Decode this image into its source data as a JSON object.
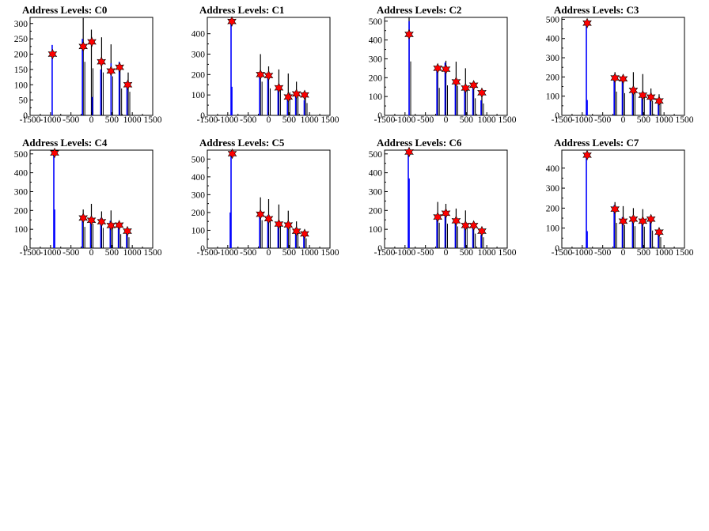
{
  "chart_data": [
    {
      "type": "histogram",
      "title": "Address Levels: C0",
      "xlim": [
        -1500,
        1500
      ],
      "ylim": [
        0,
        320
      ],
      "xticks": [
        -1500,
        -1000,
        -500,
        0,
        500,
        1000,
        1500
      ],
      "yticks": [
        0,
        50,
        100,
        150,
        200,
        250,
        300
      ],
      "black_peaks": [
        {
          "x": -200,
          "y": 318
        },
        {
          "x": 0,
          "y": 280
        },
        {
          "x": 250,
          "y": 255
        },
        {
          "x": 480,
          "y": 232
        },
        {
          "x": 700,
          "y": 160
        },
        {
          "x": 900,
          "y": 140
        }
      ],
      "blue_peaks": [
        {
          "x": -940,
          "y": 230
        },
        {
          "x": -200,
          "y": 250
        },
        {
          "x": 40,
          "y": 60
        },
        {
          "x": 250,
          "y": 150
        },
        {
          "x": 500,
          "y": 170
        },
        {
          "x": 700,
          "y": 175
        },
        {
          "x": 890,
          "y": 110
        }
      ],
      "star_markers": [
        {
          "x": -950,
          "y": 200
        },
        {
          "x": -200,
          "y": 225
        },
        {
          "x": 10,
          "y": 240
        },
        {
          "x": 245,
          "y": 175
        },
        {
          "x": 480,
          "y": 145
        },
        {
          "x": 690,
          "y": 157
        },
        {
          "x": 890,
          "y": 100
        }
      ]
    },
    {
      "type": "histogram",
      "title": "Address Levels: C1",
      "xlim": [
        -1500,
        1500
      ],
      "ylim": [
        0,
        480
      ],
      "xticks": [
        -1500,
        -1000,
        -500,
        0,
        500,
        1000,
        1500
      ],
      "yticks": [
        0,
        100,
        200,
        300,
        400
      ],
      "black_peaks": [
        {
          "x": -200,
          "y": 300
        },
        {
          "x": 0,
          "y": 240
        },
        {
          "x": 250,
          "y": 225
        },
        {
          "x": 480,
          "y": 205
        },
        {
          "x": 680,
          "y": 165
        },
        {
          "x": 900,
          "y": 110
        }
      ],
      "blue_peaks": [
        {
          "x": -900,
          "y": 470
        },
        {
          "x": -880,
          "y": 140
        },
        {
          "x": -200,
          "y": 210
        },
        {
          "x": 0,
          "y": 200
        },
        {
          "x": 250,
          "y": 135
        },
        {
          "x": 480,
          "y": 90
        },
        {
          "x": 680,
          "y": 110
        },
        {
          "x": 890,
          "y": 75
        }
      ],
      "star_markers": [
        {
          "x": -900,
          "y": 460
        },
        {
          "x": -200,
          "y": 200
        },
        {
          "x": 0,
          "y": 195
        },
        {
          "x": 250,
          "y": 135
        },
        {
          "x": 480,
          "y": 90
        },
        {
          "x": 680,
          "y": 105
        },
        {
          "x": 880,
          "y": 100
        }
      ]
    },
    {
      "type": "histogram",
      "title": "Address Levels: C2",
      "xlim": [
        -1500,
        1500
      ],
      "ylim": [
        0,
        520
      ],
      "xticks": [
        -1500,
        -1000,
        -500,
        0,
        500,
        1000,
        1500
      ],
      "yticks": [
        0,
        100,
        200,
        300,
        400,
        500
      ],
      "black_peaks": [
        {
          "x": -900,
          "y": 520
        },
        {
          "x": -200,
          "y": 265
        },
        {
          "x": 0,
          "y": 290
        },
        {
          "x": 250,
          "y": 285
        },
        {
          "x": 480,
          "y": 250
        },
        {
          "x": 680,
          "y": 165
        },
        {
          "x": 880,
          "y": 115
        }
      ],
      "blue_peaks": [
        {
          "x": -880,
          "y": 500
        },
        {
          "x": -200,
          "y": 250
        },
        {
          "x": 0,
          "y": 280
        },
        {
          "x": 250,
          "y": 180
        },
        {
          "x": 480,
          "y": 150
        },
        {
          "x": 680,
          "y": 160
        },
        {
          "x": 880,
          "y": 80
        }
      ],
      "star_markers": [
        {
          "x": -900,
          "y": 430
        },
        {
          "x": -200,
          "y": 250
        },
        {
          "x": 0,
          "y": 245
        },
        {
          "x": 250,
          "y": 178
        },
        {
          "x": 480,
          "y": 145
        },
        {
          "x": 680,
          "y": 160
        },
        {
          "x": 880,
          "y": 120
        }
      ]
    },
    {
      "type": "histogram",
      "title": "Address Levels: C3",
      "xlim": [
        -1500,
        1500
      ],
      "ylim": [
        0,
        510
      ],
      "xticks": [
        -1500,
        -1000,
        -500,
        0,
        500,
        1000,
        1500
      ],
      "yticks": [
        0,
        100,
        200,
        300,
        400,
        500
      ],
      "black_peaks": [
        {
          "x": -200,
          "y": 225
        },
        {
          "x": 0,
          "y": 210
        },
        {
          "x": 250,
          "y": 225
        },
        {
          "x": 480,
          "y": 215
        },
        {
          "x": 680,
          "y": 140
        },
        {
          "x": 880,
          "y": 110
        }
      ],
      "blue_peaks": [
        {
          "x": -880,
          "y": 480
        },
        {
          "x": -860,
          "y": 80
        },
        {
          "x": -200,
          "y": 210
        },
        {
          "x": 0,
          "y": 195
        },
        {
          "x": 250,
          "y": 140
        },
        {
          "x": 480,
          "y": 115
        },
        {
          "x": 680,
          "y": 105
        },
        {
          "x": 880,
          "y": 80
        }
      ],
      "star_markers": [
        {
          "x": -880,
          "y": 480
        },
        {
          "x": -200,
          "y": 195
        },
        {
          "x": 0,
          "y": 190
        },
        {
          "x": 250,
          "y": 130
        },
        {
          "x": 480,
          "y": 105
        },
        {
          "x": 680,
          "y": 95
        },
        {
          "x": 880,
          "y": 75
        }
      ]
    },
    {
      "type": "histogram",
      "title": "Address Levels: C4",
      "xlim": [
        -1500,
        1500
      ],
      "ylim": [
        0,
        520
      ],
      "xticks": [
        -1500,
        -1000,
        -500,
        0,
        500,
        1000,
        1500
      ],
      "yticks": [
        0,
        100,
        200,
        300,
        400,
        500
      ],
      "black_peaks": [
        {
          "x": -200,
          "y": 205
        },
        {
          "x": 0,
          "y": 235
        },
        {
          "x": 250,
          "y": 195
        },
        {
          "x": 480,
          "y": 200
        },
        {
          "x": 680,
          "y": 135
        },
        {
          "x": 880,
          "y": 105
        }
      ],
      "blue_peaks": [
        {
          "x": -900,
          "y": 510
        },
        {
          "x": -880,
          "y": 205
        },
        {
          "x": -200,
          "y": 175
        },
        {
          "x": 0,
          "y": 160
        },
        {
          "x": 250,
          "y": 160
        },
        {
          "x": 480,
          "y": 145
        },
        {
          "x": 680,
          "y": 120
        },
        {
          "x": 880,
          "y": 85
        }
      ],
      "star_markers": [
        {
          "x": -900,
          "y": 505
        },
        {
          "x": -200,
          "y": 160
        },
        {
          "x": 0,
          "y": 148
        },
        {
          "x": 250,
          "y": 140
        },
        {
          "x": 480,
          "y": 120
        },
        {
          "x": 680,
          "y": 122
        },
        {
          "x": 880,
          "y": 90
        }
      ]
    },
    {
      "type": "histogram",
      "title": "Address Levels: C5",
      "xlim": [
        -1500,
        1500
      ],
      "ylim": [
        0,
        550
      ],
      "xticks": [
        -1500,
        -1000,
        -500,
        0,
        500,
        1000,
        1500
      ],
      "yticks": [
        0,
        100,
        200,
        300,
        400,
        500
      ],
      "black_peaks": [
        {
          "x": -200,
          "y": 285
        },
        {
          "x": 0,
          "y": 275
        },
        {
          "x": 250,
          "y": 245
        },
        {
          "x": 480,
          "y": 210
        },
        {
          "x": 680,
          "y": 150
        },
        {
          "x": 880,
          "y": 100
        }
      ],
      "blue_peaks": [
        {
          "x": -900,
          "y": 545
        },
        {
          "x": -920,
          "y": 200
        },
        {
          "x": -200,
          "y": 200
        },
        {
          "x": 0,
          "y": 185
        },
        {
          "x": 250,
          "y": 130
        },
        {
          "x": 480,
          "y": 130
        },
        {
          "x": 680,
          "y": 100
        },
        {
          "x": 880,
          "y": 85
        }
      ],
      "star_markers": [
        {
          "x": -890,
          "y": 530
        },
        {
          "x": -200,
          "y": 190
        },
        {
          "x": 0,
          "y": 165
        },
        {
          "x": 250,
          "y": 135
        },
        {
          "x": 480,
          "y": 130
        },
        {
          "x": 680,
          "y": 95
        },
        {
          "x": 880,
          "y": 80
        }
      ]
    },
    {
      "type": "histogram",
      "title": "Address Levels: C6",
      "xlim": [
        -1500,
        1500
      ],
      "ylim": [
        0,
        520
      ],
      "xticks": [
        -1500,
        -1000,
        -500,
        0,
        500,
        1000,
        1500
      ],
      "yticks": [
        0,
        100,
        200,
        300,
        400,
        500
      ],
      "black_peaks": [
        {
          "x": -200,
          "y": 245
        },
        {
          "x": 0,
          "y": 235
        },
        {
          "x": 250,
          "y": 210
        },
        {
          "x": 480,
          "y": 200
        },
        {
          "x": 680,
          "y": 140
        },
        {
          "x": 880,
          "y": 105
        }
      ],
      "blue_peaks": [
        {
          "x": -900,
          "y": 520
        },
        {
          "x": -880,
          "y": 370
        },
        {
          "x": -200,
          "y": 170
        },
        {
          "x": 0,
          "y": 200
        },
        {
          "x": 250,
          "y": 140
        },
        {
          "x": 480,
          "y": 130
        },
        {
          "x": 680,
          "y": 125
        },
        {
          "x": 880,
          "y": 70
        }
      ],
      "star_markers": [
        {
          "x": -900,
          "y": 510
        },
        {
          "x": -200,
          "y": 165
        },
        {
          "x": 0,
          "y": 185
        },
        {
          "x": 250,
          "y": 145
        },
        {
          "x": 480,
          "y": 120
        },
        {
          "x": 680,
          "y": 120
        },
        {
          "x": 880,
          "y": 90
        }
      ]
    },
    {
      "type": "histogram",
      "title": "Address Levels: C7",
      "xlim": [
        -1500,
        1500
      ],
      "ylim": [
        0,
        490
      ],
      "xticks": [
        -1500,
        -1000,
        -500,
        0,
        500,
        1000,
        1500
      ],
      "yticks": [
        0,
        100,
        200,
        300,
        400
      ],
      "black_peaks": [
        {
          "x": -200,
          "y": 230
        },
        {
          "x": 0,
          "y": 210
        },
        {
          "x": 250,
          "y": 200
        },
        {
          "x": 480,
          "y": 195
        },
        {
          "x": 680,
          "y": 160
        },
        {
          "x": 880,
          "y": 100
        }
      ],
      "blue_peaks": [
        {
          "x": -880,
          "y": 475
        },
        {
          "x": -860,
          "y": 85
        },
        {
          "x": -200,
          "y": 215
        },
        {
          "x": 0,
          "y": 155
        },
        {
          "x": 250,
          "y": 155
        },
        {
          "x": 480,
          "y": 140
        },
        {
          "x": 680,
          "y": 150
        },
        {
          "x": 880,
          "y": 70
        }
      ],
      "star_markers": [
        {
          "x": -880,
          "y": 465
        },
        {
          "x": -200,
          "y": 195
        },
        {
          "x": 0,
          "y": 135
        },
        {
          "x": 250,
          "y": 145
        },
        {
          "x": 480,
          "y": 135
        },
        {
          "x": 680,
          "y": 145
        },
        {
          "x": 880,
          "y": 80
        }
      ]
    }
  ],
  "colors": {
    "black_series": "#000000",
    "blue_series": "#0000ff",
    "star_fill": "#ff0000",
    "star_edge": "#000000",
    "frame": "#000000",
    "background": "#ffffff"
  }
}
